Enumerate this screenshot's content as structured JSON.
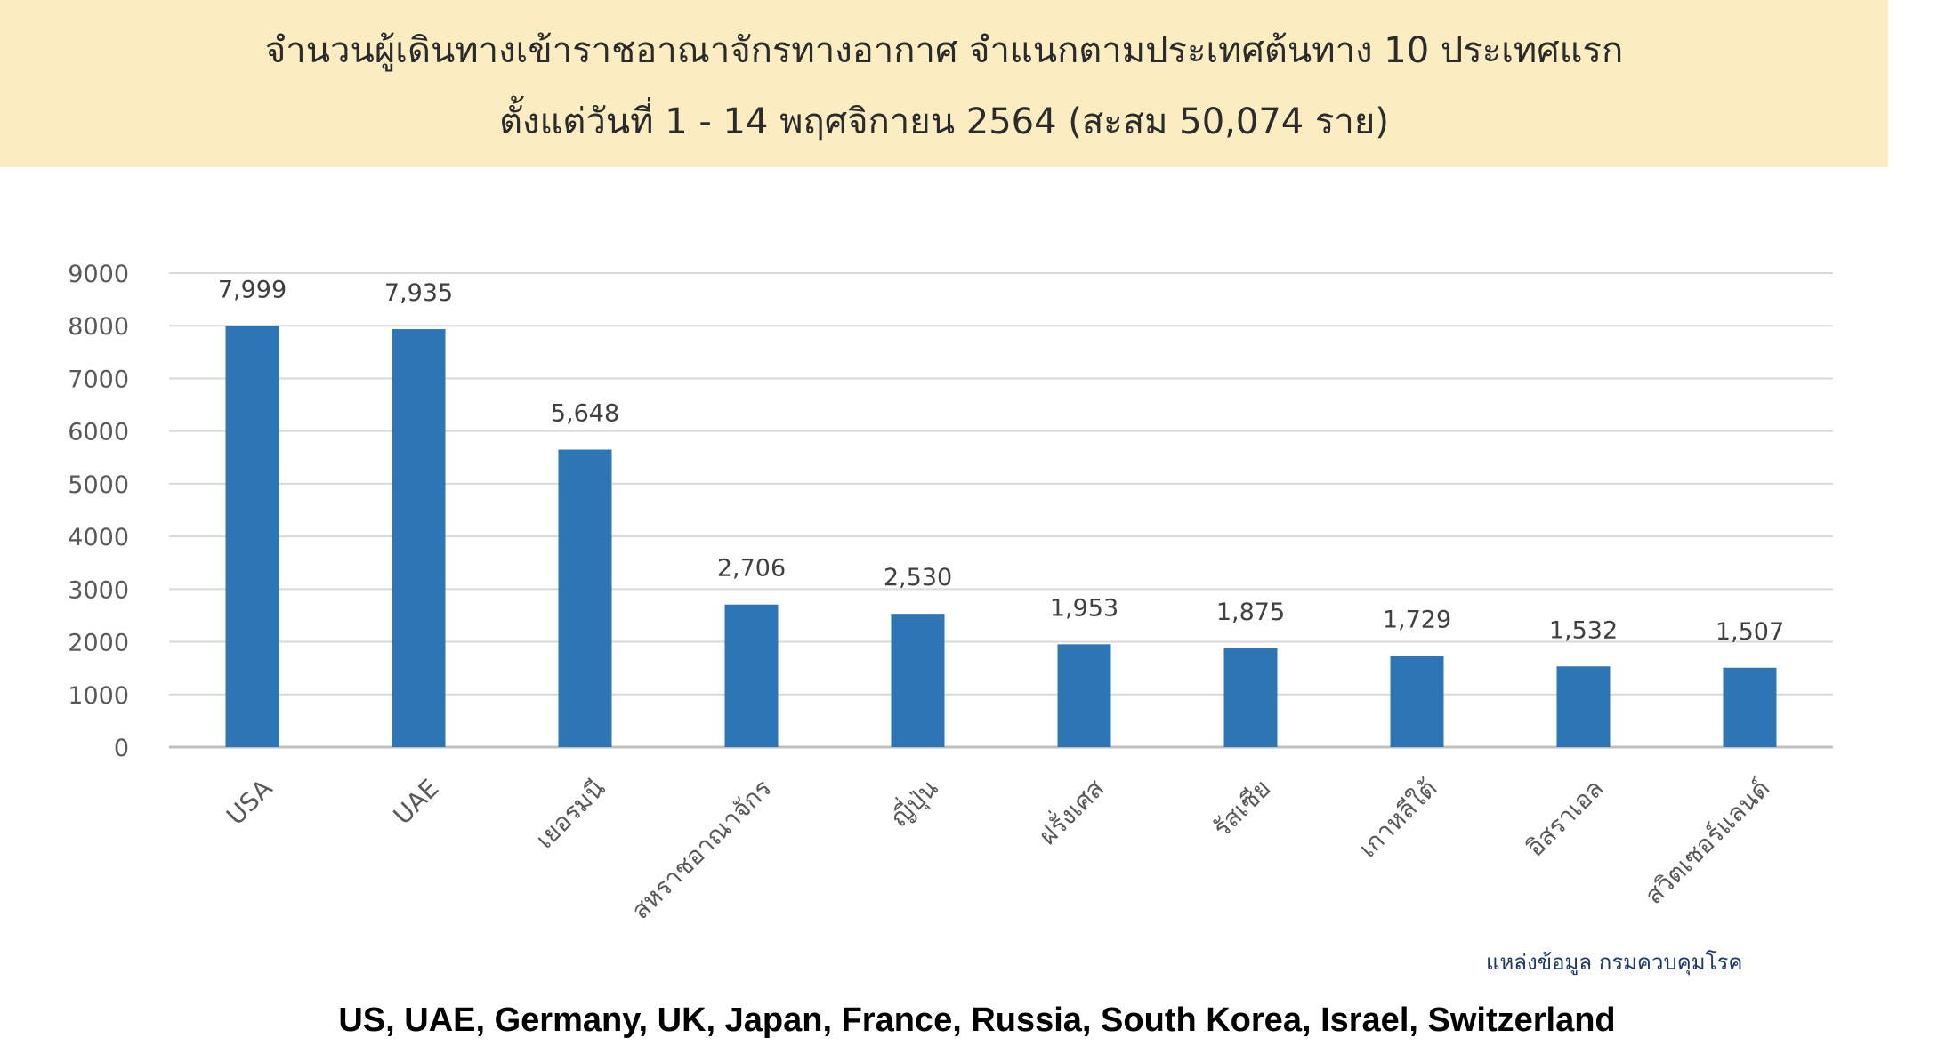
{
  "header": {
    "title_line1": "จำนวนผู้เดินทางเข้าราชอาณาจักรทางอากาศ จำแนกตามประเทศต้นทาง 10 ประเทศแรก",
    "title_line2": "ตั้งแต่วันที่  1 - 14  พฤศจิกายน 2564 (สะสม 50,074 ราย)"
  },
  "chart_data": {
    "type": "bar",
    "categories": [
      "USA",
      "UAE",
      "เยอรมนี",
      "สหราชอาณาจักร",
      "ญี่ปุ่น",
      "ฝรั่งเศส",
      "รัสเซีย",
      "เกาหลีใต้",
      "อิสราเอล",
      "สวิตเซอร์แลนด์"
    ],
    "values": [
      7999,
      7935,
      5648,
      2706,
      2530,
      1953,
      1875,
      1729,
      1532,
      1507
    ],
    "data_labels": [
      "7,999",
      "7,935",
      "5,648",
      "2,706",
      "2,530",
      "1,953",
      "1,875",
      "1,729",
      "1,532",
      "1,507"
    ],
    "yticks": [
      "0",
      "1000",
      "2000",
      "3000",
      "4000",
      "5000",
      "6000",
      "7000",
      "8000",
      "9000"
    ],
    "ylim": [
      0,
      9000
    ],
    "grid": true,
    "legend": "none",
    "bar_color": "#2e75b6",
    "grid_color": "#d9d9d9"
  },
  "source_note": "แหล่งข้อมูล กรมควบคุมโรค",
  "footer_caption": "US, UAE, Germany, UK, Japan, France, Russia, South Korea, Israel, Switzerland"
}
